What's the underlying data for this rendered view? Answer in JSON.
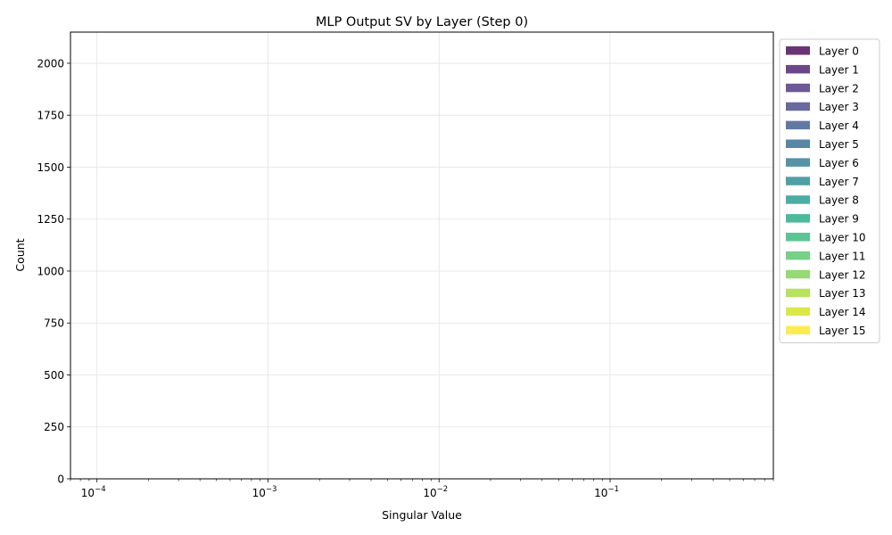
{
  "chart_data": {
    "type": "bar",
    "title": "MLP Output SV by Layer (Step 0)",
    "xlabel": "Singular Value",
    "ylabel": "Count",
    "x_scale": "log",
    "xlim": [
      7e-05,
      0.9
    ],
    "ylim": [
      0,
      2150
    ],
    "x_major_ticks": [
      {
        "value": 0.0001,
        "base": "10",
        "exp": "−4"
      },
      {
        "value": 0.001,
        "base": "10",
        "exp": "−3"
      },
      {
        "value": 0.01,
        "base": "10",
        "exp": "−2"
      },
      {
        "value": 0.1,
        "base": "10",
        "exp": "−1"
      }
    ],
    "y_ticks": [
      0,
      250,
      500,
      750,
      1000,
      1250,
      1500,
      1750,
      2000
    ],
    "grid": true,
    "legend_position": "outside-right-top",
    "series": [
      {
        "name": "Layer 0",
        "color": "#440154",
        "values": []
      },
      {
        "name": "Layer 1",
        "color": "#481a6c",
        "values": []
      },
      {
        "name": "Layer 2",
        "color": "#472f7d",
        "values": []
      },
      {
        "name": "Layer 3",
        "color": "#414487",
        "values": []
      },
      {
        "name": "Layer 4",
        "color": "#39568c",
        "values": []
      },
      {
        "name": "Layer 5",
        "color": "#31688e",
        "values": []
      },
      {
        "name": "Layer 6",
        "color": "#2a788e",
        "values": []
      },
      {
        "name": "Layer 7",
        "color": "#23888e",
        "values": []
      },
      {
        "name": "Layer 8",
        "color": "#1f988b",
        "values": []
      },
      {
        "name": "Layer 9",
        "color": "#22a884",
        "values": []
      },
      {
        "name": "Layer 10",
        "color": "#35b779",
        "values": []
      },
      {
        "name": "Layer 11",
        "color": "#54c568",
        "values": []
      },
      {
        "name": "Layer 12",
        "color": "#7ad151",
        "values": []
      },
      {
        "name": "Layer 13",
        "color": "#a5db36",
        "values": []
      },
      {
        "name": "Layer 14",
        "color": "#d2e21b",
        "values": []
      },
      {
        "name": "Layer 15",
        "color": "#fde725",
        "values": []
      }
    ]
  }
}
